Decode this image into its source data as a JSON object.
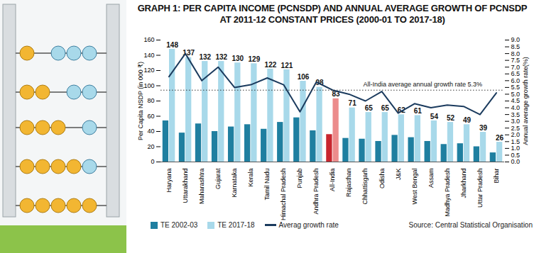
{
  "chart_data": {
    "type": "bar",
    "title": "GRAPH 1: PER CAPITA INCOME (PCNSDP) AND ANNUAL AVERAGE GROWTH OF PCNSDP AT 2011-12 CONSTANT PRICES (2000-01 TO 2017-18)",
    "source": "Source: Central Statistical Organisation",
    "categories": [
      "Haryana",
      "Uttarakhand",
      "Maharashtra",
      "Gujarat",
      "Karnataka",
      "Kerala",
      "Tamil Nadu",
      "Himachal Pradesh",
      "Punjab",
      "Andhra Pradesh",
      "All-India",
      "Rajasthan",
      "Chhattisgarh",
      "Odisha",
      "J&K",
      "West Bengal",
      "Assam",
      "Madhya Pradesh",
      "Jharkhand",
      "Uttar Pradesh",
      "Bihar"
    ],
    "y_label": "Per Capita NSDP (in 000 ₹)",
    "y2_label": "Annual average growth rate(%)",
    "ylim": [
      0,
      160
    ],
    "yticks": [
      0,
      20,
      40,
      60,
      80,
      100,
      120,
      140,
      160
    ],
    "y2lim": [
      0,
      9
    ],
    "y2ticks": [
      {
        "value": 0,
        "label": "0.0"
      },
      {
        "value": 0.5,
        "label": "0.5"
      },
      {
        "value": 1,
        "label": "1.0"
      },
      {
        "value": 1.5,
        "label": "1.5"
      },
      {
        "value": 2,
        "label": "2.0"
      },
      {
        "value": 2.5,
        "label": "2.5"
      },
      {
        "value": 3,
        "label": "3.0"
      },
      {
        "value": 3.5,
        "label": "3.5"
      },
      {
        "value": 4,
        "label": "4.0"
      },
      {
        "value": 4.5,
        "label": "4.5"
      },
      {
        "value": 5,
        "label": "5.0"
      },
      {
        "value": 5.5,
        "label": "5.5"
      },
      {
        "value": 6,
        "label": "6.0"
      },
      {
        "value": 6.5,
        "label": "6.5"
      },
      {
        "value": 7,
        "label": "7.0"
      },
      {
        "value": 7.5,
        "label": "7.5"
      },
      {
        "value": 8,
        "label": "8.0"
      },
      {
        "value": 8.5,
        "label": "8.5"
      },
      {
        "value": 9,
        "label": "9.0"
      }
    ],
    "grid": false,
    "legend": "bottom",
    "series": [
      {
        "name": "TE 2002-03",
        "type": "bar",
        "color": "#1f7fa0",
        "colors": [
          "#1f7fa0",
          "#1f7fa0",
          "#1f7fa0",
          "#1f7fa0",
          "#1f7fa0",
          "#1f7fa0",
          "#1f7fa0",
          "#1f7fa0",
          "#1f7fa0",
          "#1f7fa0",
          "#c8262e",
          "#1f7fa0",
          "#1f7fa0",
          "#1f7fa0",
          "#1f7fa0",
          "#1f7fa0",
          "#1f7fa0",
          "#1f7fa0",
          "#1f7fa0",
          "#1f7fa0",
          "#1f7fa0"
        ],
        "values": [
          54,
          38,
          50,
          40,
          46,
          49,
          43,
          52,
          58,
          41,
          36,
          31,
          30,
          27,
          35,
          32,
          27,
          23,
          24,
          20,
          12
        ]
      },
      {
        "name": "TE 2017-18",
        "type": "bar",
        "color": "#a8d9ea",
        "data_labels": true,
        "colors": [
          "#a8d9ea",
          "#a8d9ea",
          "#a8d9ea",
          "#a8d9ea",
          "#a8d9ea",
          "#a8d9ea",
          "#a8d9ea",
          "#a8d9ea",
          "#a8d9ea",
          "#a8d9ea",
          "#ec8c8c",
          "#a8d9ea",
          "#a8d9ea",
          "#a8d9ea",
          "#a8d9ea",
          "#a8d9ea",
          "#a8d9ea",
          "#a8d9ea",
          "#a8d9ea",
          "#a8d9ea",
          "#a8d9ea"
        ],
        "values": [
          148,
          137,
          132,
          132,
          130,
          129,
          122,
          121,
          106,
          98,
          83,
          71,
          65,
          65,
          62,
          61,
          54,
          52,
          49,
          39,
          26
        ]
      },
      {
        "name": "Averag growth rate",
        "type": "line",
        "axis": "y2",
        "color": "#1b3b5e",
        "values": [
          6.3,
          8.0,
          6.0,
          7.0,
          5.5,
          5.7,
          6.2,
          5.7,
          3.7,
          5.9,
          5.3,
          5.0,
          4.5,
          5.2,
          3.6,
          4.3,
          4.0,
          4.2,
          4.1,
          3.5,
          5.1
        ]
      }
    ],
    "annotations": [
      {
        "text": "All-India average annual growth rate 5.3%",
        "value": 5.3,
        "axis": "y2",
        "line_style": "dotted"
      }
    ]
  }
}
